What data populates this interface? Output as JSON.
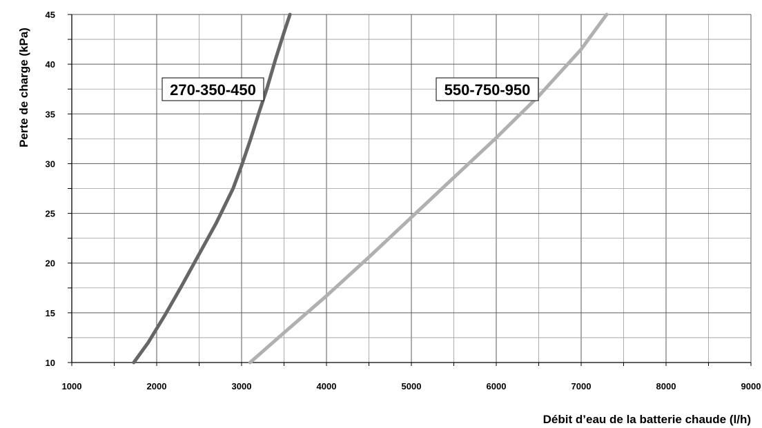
{
  "chart_data": {
    "type": "line",
    "title": "",
    "xlabel": "Débit d’eau de la batterie chaude (l/h)",
    "ylabel": "Perte de charge (kPa)",
    "xlim": [
      1000,
      9000
    ],
    "ylim": [
      10,
      45
    ],
    "xticks": [
      "1000",
      "2000",
      "3000",
      "4000",
      "5000",
      "6000",
      "7000",
      "8000",
      "9000"
    ],
    "yticks": [
      "10",
      "15",
      "20",
      "25",
      "30",
      "35",
      "40",
      "45"
    ],
    "grid": true,
    "series": [
      {
        "name": "270-350-450",
        "color": "#666666",
        "x": [
          1730,
          1900,
          2100,
          2300,
          2500,
          2700,
          2900,
          3000,
          3100,
          3200,
          3300,
          3400,
          3500,
          3570
        ],
        "y": [
          10,
          12,
          14.8,
          17.8,
          20.9,
          24,
          27.5,
          29.8,
          32.3,
          35,
          37.6,
          40.5,
          43.2,
          45
        ]
      },
      {
        "name": "550-750-950",
        "color": "#b0b0b0",
        "x": [
          3100,
          3500,
          4000,
          4500,
          5000,
          5500,
          6000,
          6500,
          7000,
          7300
        ],
        "y": [
          10,
          13,
          16.7,
          20.6,
          24.6,
          28.6,
          32.6,
          36.8,
          41.5,
          45
        ]
      }
    ]
  }
}
